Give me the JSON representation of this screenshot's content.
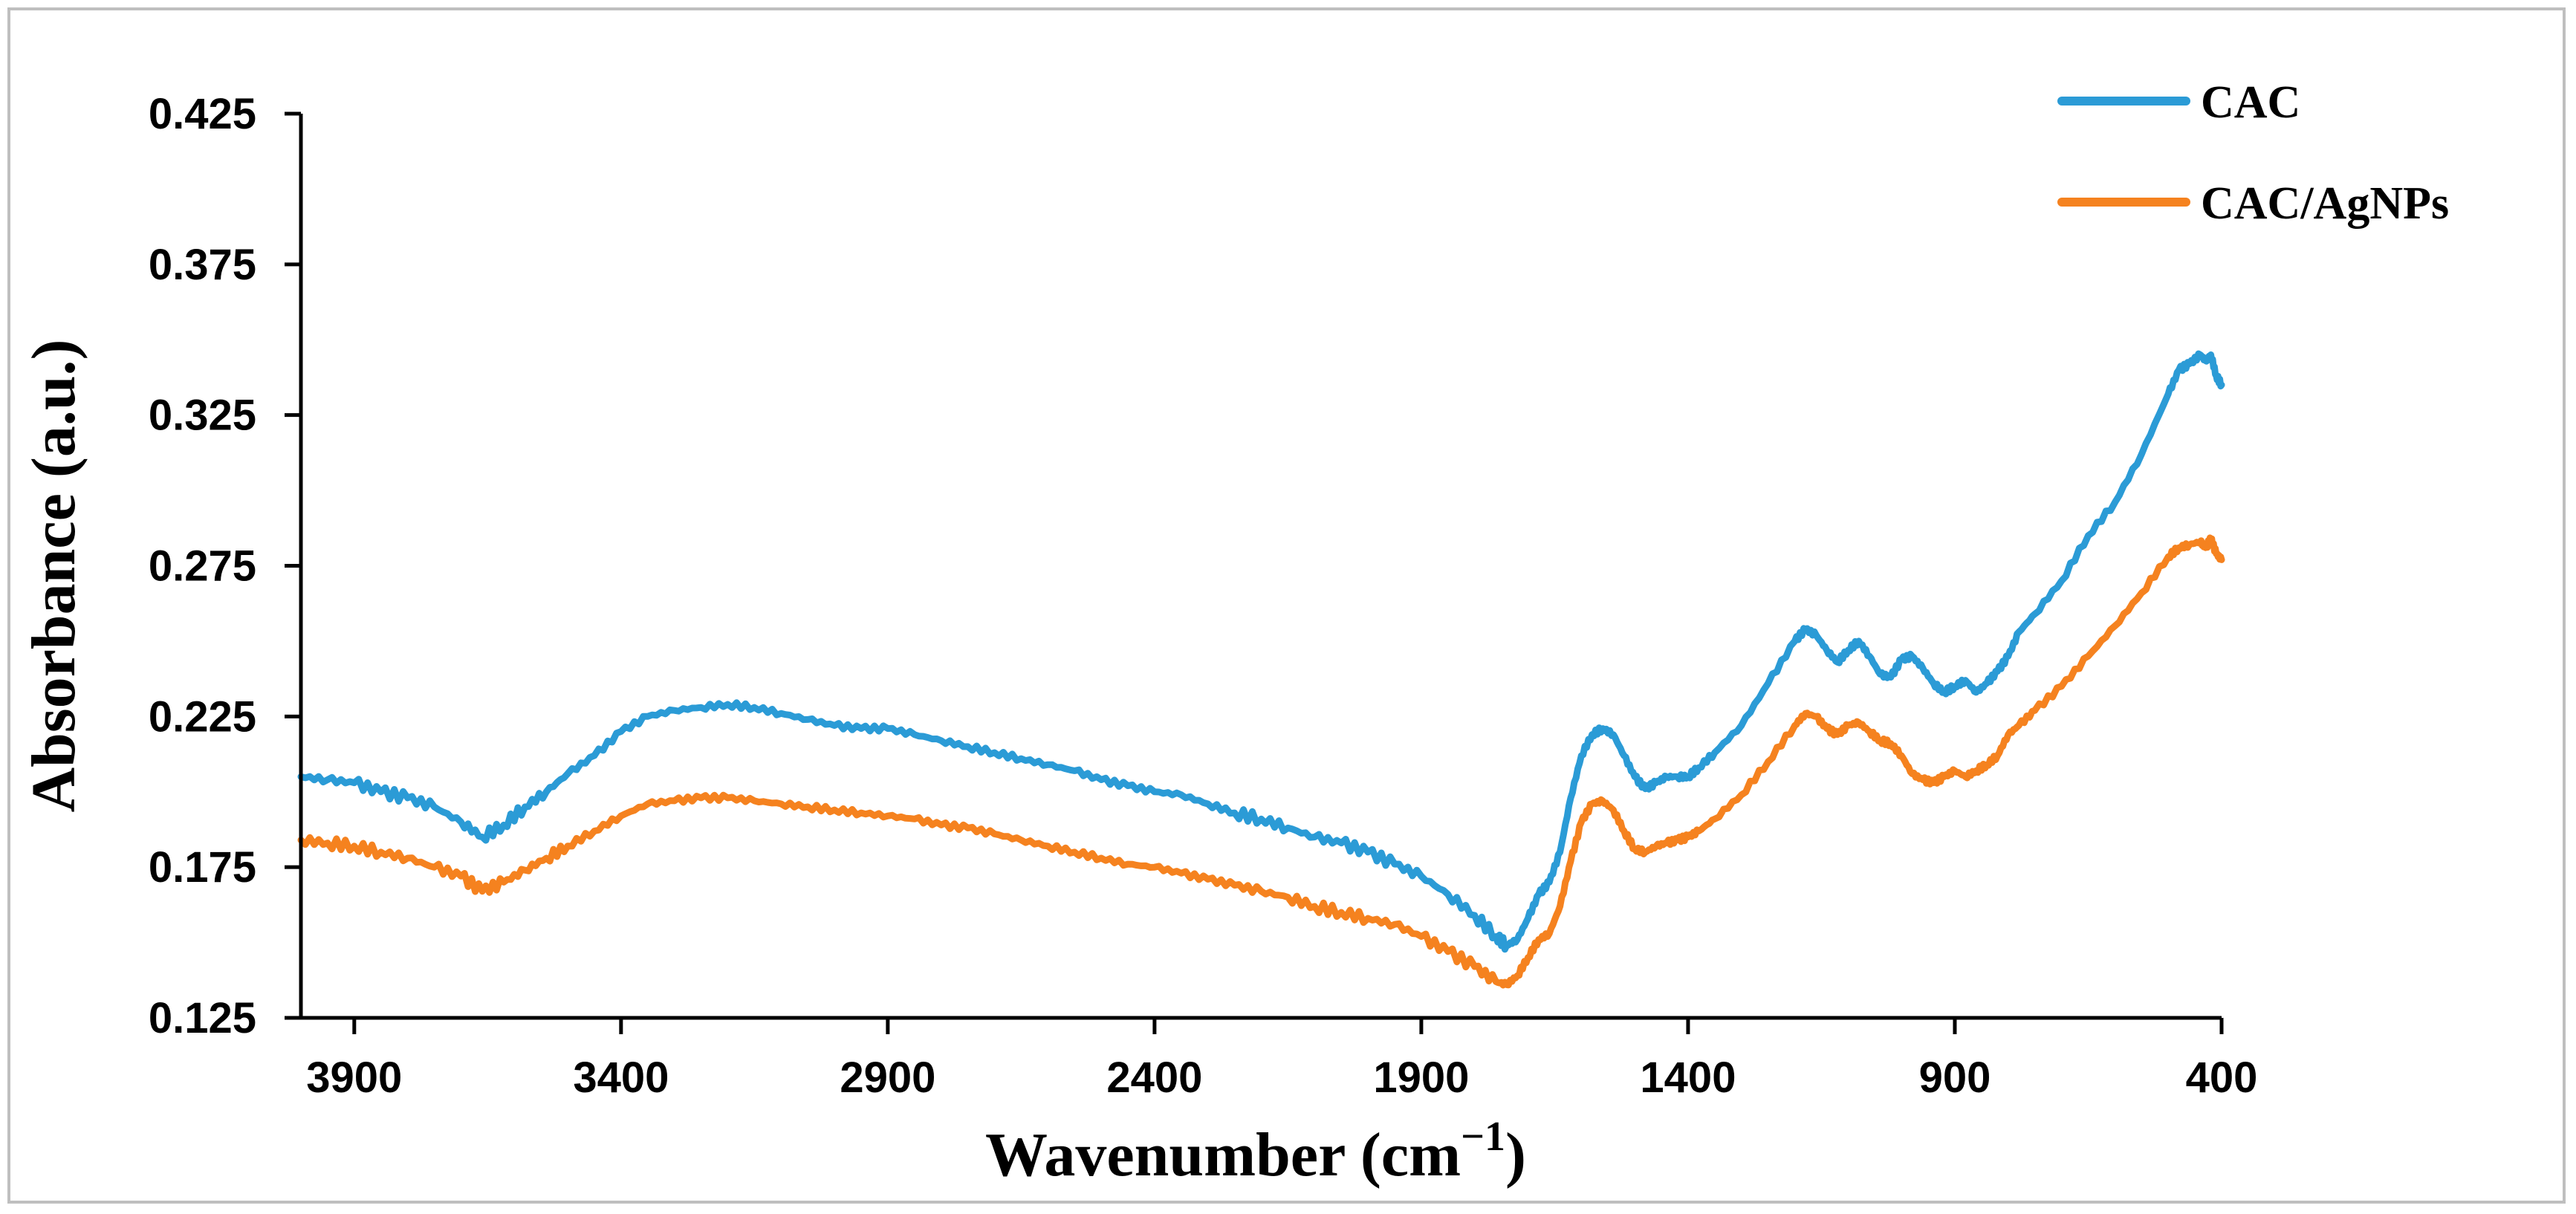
{
  "chart_data": {
    "type": "line",
    "title": "",
    "xlabel": "Wavenumber (cm",
    "xlabel_sup": "−1",
    "xlabel_end": ")",
    "ylabel": "Absorbance (a.u.)",
    "xlim": [
      4000,
      400
    ],
    "ylim": [
      0.125,
      0.425
    ],
    "x_reversed": true,
    "x_ticks": [
      "3900",
      "3400",
      "2900",
      "2400",
      "1900",
      "1400",
      "900",
      "400"
    ],
    "y_ticks": [
      "0.125",
      "0.175",
      "0.225",
      "0.275",
      "0.325",
      "0.375",
      "0.425"
    ],
    "grid": false,
    "legend": "top-right",
    "series": [
      {
        "name": "CAC",
        "color": "#2b9bd6",
        "x": [
          4000,
          3950,
          3900,
          3850,
          3800,
          3750,
          3700,
          3660,
          3620,
          3580,
          3540,
          3500,
          3450,
          3400,
          3350,
          3300,
          3250,
          3200,
          3150,
          3100,
          3050,
          3000,
          2950,
          2900,
          2850,
          2800,
          2750,
          2700,
          2650,
          2600,
          2550,
          2500,
          2450,
          2400,
          2350,
          2300,
          2250,
          2200,
          2150,
          2100,
          2050,
          2000,
          1950,
          1900,
          1850,
          1800,
          1760,
          1740,
          1720,
          1700,
          1680,
          1660,
          1640,
          1620,
          1600,
          1580,
          1560,
          1540,
          1520,
          1500,
          1480,
          1460,
          1440,
          1420,
          1400,
          1380,
          1350,
          1300,
          1250,
          1200,
          1180,
          1160,
          1140,
          1120,
          1100,
          1080,
          1060,
          1040,
          1020,
          1000,
          980,
          960,
          940,
          920,
          900,
          880,
          860,
          840,
          820,
          800,
          780,
          750,
          700,
          650,
          600,
          550,
          500,
          480,
          460,
          440,
          430,
          420,
          410,
          400
        ],
        "y": [
          0.205,
          0.204,
          0.203,
          0.2,
          0.198,
          0.195,
          0.19,
          0.185,
          0.189,
          0.195,
          0.2,
          0.206,
          0.212,
          0.22,
          0.225,
          0.227,
          0.228,
          0.229,
          0.228,
          0.226,
          0.224,
          0.222,
          0.221,
          0.221,
          0.219,
          0.217,
          0.215,
          0.213,
          0.211,
          0.209,
          0.207,
          0.204,
          0.202,
          0.2,
          0.199,
          0.196,
          0.193,
          0.191,
          0.188,
          0.185,
          0.183,
          0.18,
          0.176,
          0.172,
          0.166,
          0.159,
          0.152,
          0.149,
          0.151,
          0.158,
          0.166,
          0.17,
          0.18,
          0.198,
          0.212,
          0.219,
          0.221,
          0.219,
          0.212,
          0.205,
          0.201,
          0.203,
          0.205,
          0.205,
          0.205,
          0.208,
          0.213,
          0.222,
          0.236,
          0.25,
          0.254,
          0.252,
          0.247,
          0.243,
          0.247,
          0.25,
          0.245,
          0.239,
          0.238,
          0.244,
          0.245,
          0.241,
          0.236,
          0.233,
          0.235,
          0.237,
          0.233,
          0.236,
          0.24,
          0.245,
          0.253,
          0.259,
          0.27,
          0.285,
          0.296,
          0.312,
          0.332,
          0.34,
          0.342,
          0.345,
          0.343,
          0.345,
          0.338,
          0.335
        ]
      },
      {
        "name": "CAC/AgNPs",
        "color": "#f5821f",
        "x": [
          4000,
          3950,
          3900,
          3850,
          3800,
          3750,
          3700,
          3660,
          3620,
          3580,
          3540,
          3500,
          3450,
          3400,
          3350,
          3300,
          3250,
          3200,
          3150,
          3100,
          3050,
          3000,
          2950,
          2900,
          2850,
          2800,
          2750,
          2700,
          2650,
          2600,
          2550,
          2500,
          2450,
          2400,
          2350,
          2300,
          2250,
          2200,
          2150,
          2100,
          2050,
          2000,
          1950,
          1900,
          1850,
          1800,
          1760,
          1740,
          1720,
          1700,
          1680,
          1660,
          1640,
          1620,
          1600,
          1580,
          1560,
          1540,
          1520,
          1500,
          1480,
          1460,
          1440,
          1420,
          1400,
          1380,
          1350,
          1300,
          1250,
          1200,
          1180,
          1160,
          1140,
          1120,
          1100,
          1080,
          1060,
          1040,
          1020,
          1000,
          980,
          960,
          940,
          920,
          900,
          880,
          860,
          840,
          820,
          800,
          780,
          750,
          700,
          650,
          600,
          550,
          500,
          480,
          460,
          440,
          430,
          420,
          410,
          400
        ],
        "y": [
          0.184,
          0.183,
          0.182,
          0.18,
          0.178,
          0.175,
          0.172,
          0.167,
          0.17,
          0.174,
          0.178,
          0.182,
          0.187,
          0.192,
          0.196,
          0.197,
          0.198,
          0.198,
          0.197,
          0.196,
          0.195,
          0.194,
          0.193,
          0.192,
          0.191,
          0.189,
          0.188,
          0.186,
          0.184,
          0.182,
          0.18,
          0.178,
          0.176,
          0.175,
          0.173,
          0.171,
          0.169,
          0.167,
          0.165,
          0.162,
          0.16,
          0.158,
          0.156,
          0.152,
          0.147,
          0.142,
          0.137,
          0.136,
          0.139,
          0.145,
          0.151,
          0.153,
          0.162,
          0.177,
          0.19,
          0.196,
          0.197,
          0.194,
          0.187,
          0.181,
          0.18,
          0.182,
          0.183,
          0.184,
          0.185,
          0.187,
          0.191,
          0.199,
          0.21,
          0.222,
          0.226,
          0.225,
          0.221,
          0.219,
          0.222,
          0.223,
          0.22,
          0.217,
          0.216,
          0.212,
          0.206,
          0.204,
          0.203,
          0.205,
          0.207,
          0.205,
          0.207,
          0.209,
          0.212,
          0.219,
          0.222,
          0.227,
          0.235,
          0.245,
          0.255,
          0.266,
          0.278,
          0.281,
          0.282,
          0.283,
          0.281,
          0.284,
          0.279,
          0.277
        ]
      }
    ]
  }
}
